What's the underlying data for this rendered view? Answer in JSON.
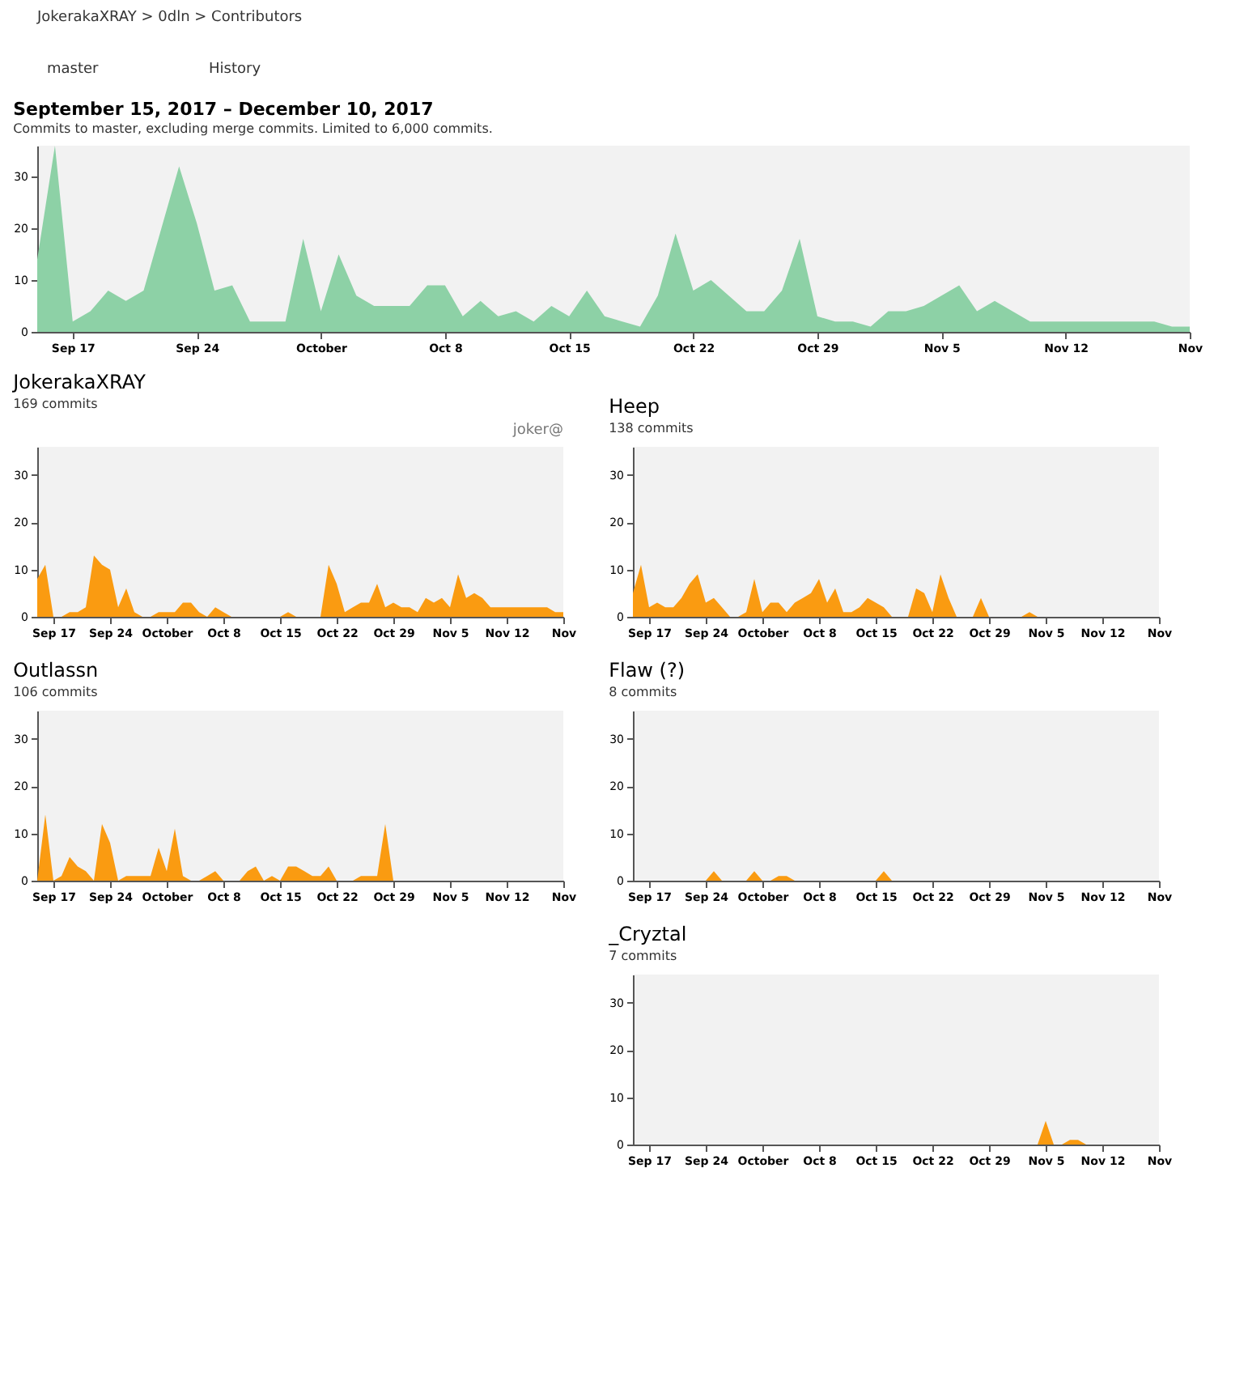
{
  "chart_data": [
    {
      "type": "area",
      "title": "September 15, 2017 – December 10, 2017",
      "subtitle": "Commits to master, excluding merge commits. Limited to 6,000 commits.",
      "annotations": [
        "JokerakaXRAY > 0dln > Contributors",
        "master",
        "History"
      ],
      "color": "#8dd1a6",
      "x": [
        "2017-09-15",
        "2017-09-16",
        "2017-09-17",
        "2017-09-18",
        "2017-09-19",
        "2017-09-20",
        "2017-09-21",
        "2017-09-22",
        "2017-09-23",
        "2017-09-24",
        "2017-09-25",
        "2017-09-26",
        "2017-09-27",
        "2017-09-28",
        "2017-09-29",
        "2017-09-30",
        "2017-10-01",
        "2017-10-02",
        "2017-10-03",
        "2017-10-04",
        "2017-10-05",
        "2017-10-06",
        "2017-10-07",
        "2017-10-08",
        "2017-10-09",
        "2017-10-10",
        "2017-10-11",
        "2017-10-12",
        "2017-10-13",
        "2017-10-14",
        "2017-10-15",
        "2017-10-16",
        "2017-10-17",
        "2017-10-18",
        "2017-10-19",
        "2017-10-20",
        "2017-10-21",
        "2017-10-22",
        "2017-10-23",
        "2017-10-24",
        "2017-10-25",
        "2017-10-26",
        "2017-10-27",
        "2017-10-28",
        "2017-10-29",
        "2017-10-30",
        "2017-10-31",
        "2017-11-01",
        "2017-11-02",
        "2017-11-03",
        "2017-11-04",
        "2017-11-05",
        "2017-11-06",
        "2017-11-07",
        "2017-11-08",
        "2017-11-09",
        "2017-11-10",
        "2017-11-11",
        "2017-11-12",
        "2017-11-13",
        "2017-11-14",
        "2017-11-15",
        "2017-11-16",
        "2017-11-17",
        "2017-11-18",
        "2017-11-19"
      ],
      "values": [
        14,
        36,
        2,
        4,
        8,
        6,
        8,
        20,
        32,
        21,
        8,
        9,
        2,
        2,
        2,
        18,
        4,
        15,
        7,
        5,
        5,
        5,
        9,
        9,
        3,
        6,
        3,
        4,
        2,
        5,
        3,
        8,
        3,
        2,
        1,
        7,
        19,
        8,
        10,
        7,
        4,
        4,
        8,
        18,
        3,
        2,
        2,
        1,
        4,
        4,
        5,
        7,
        9,
        4,
        6,
        4,
        2,
        2,
        2,
        2,
        2,
        2,
        2,
        2,
        1,
        1
      ],
      "xlim": [
        "2017-09-15",
        "2017-11-19"
      ],
      "xticks": [
        {
          "value": "2017-09-17",
          "label": "Sep 17"
        },
        {
          "value": "2017-09-24",
          "label": "Sep 24"
        },
        {
          "value": "2017-10-01",
          "label": "October"
        },
        {
          "value": "2017-10-08",
          "label": "Oct 8"
        },
        {
          "value": "2017-10-15",
          "label": "Oct 15"
        },
        {
          "value": "2017-10-22",
          "label": "Oct 22"
        },
        {
          "value": "2017-10-29",
          "label": "Oct 29"
        },
        {
          "value": "2017-11-05",
          "label": "Nov 5"
        },
        {
          "value": "2017-11-12",
          "label": "Nov 12"
        },
        {
          "value": "2017-11-19",
          "label": "Nov"
        }
      ],
      "ylim": [
        0,
        36
      ],
      "yticks": [
        0,
        10,
        20,
        30
      ],
      "grid": false
    },
    {
      "type": "area",
      "title": "JokerakaXRAY",
      "subtitle": "169 commits",
      "annotations": [
        "joker@"
      ],
      "color": "#fa9b11",
      "x": [
        "2017-09-15",
        "2017-09-16",
        "2017-09-17",
        "2017-09-18",
        "2017-09-19",
        "2017-09-20",
        "2017-09-21",
        "2017-09-22",
        "2017-09-23",
        "2017-09-24",
        "2017-09-25",
        "2017-09-26",
        "2017-09-27",
        "2017-09-28",
        "2017-09-29",
        "2017-09-30",
        "2017-10-01",
        "2017-10-02",
        "2017-10-03",
        "2017-10-04",
        "2017-10-05",
        "2017-10-06",
        "2017-10-07",
        "2017-10-08",
        "2017-10-09",
        "2017-10-10",
        "2017-10-11",
        "2017-10-12",
        "2017-10-13",
        "2017-10-14",
        "2017-10-15",
        "2017-10-16",
        "2017-10-17",
        "2017-10-18",
        "2017-10-19",
        "2017-10-20",
        "2017-10-21",
        "2017-10-22",
        "2017-10-23",
        "2017-10-24",
        "2017-10-25",
        "2017-10-26",
        "2017-10-27",
        "2017-10-28",
        "2017-10-29",
        "2017-10-30",
        "2017-10-31",
        "2017-11-01",
        "2017-11-02",
        "2017-11-03",
        "2017-11-04",
        "2017-11-05",
        "2017-11-06",
        "2017-11-07",
        "2017-11-08",
        "2017-11-09",
        "2017-11-10",
        "2017-11-11",
        "2017-11-12",
        "2017-11-13",
        "2017-11-14",
        "2017-11-15",
        "2017-11-16",
        "2017-11-17",
        "2017-11-18",
        "2017-11-19"
      ],
      "values": [
        8,
        11,
        0,
        0,
        1,
        1,
        2,
        13,
        11,
        10,
        2,
        6,
        1,
        0,
        0,
        1,
        1,
        1,
        3,
        3,
        1,
        0,
        2,
        1,
        0,
        0,
        0,
        0,
        0,
        0,
        0,
        1,
        0,
        0,
        0,
        0,
        11,
        7,
        1,
        2,
        3,
        3,
        7,
        2,
        3,
        2,
        2,
        1,
        4,
        3,
        4,
        2,
        9,
        4,
        5,
        4,
        2,
        2,
        2,
        2,
        2,
        2,
        2,
        2,
        1,
        1
      ],
      "xlim": [
        "2017-09-15",
        "2017-11-19"
      ],
      "xticks": [
        {
          "value": "2017-09-17",
          "label": "Sep 17"
        },
        {
          "value": "2017-09-24",
          "label": "Sep 24"
        },
        {
          "value": "2017-10-01",
          "label": "October"
        },
        {
          "value": "2017-10-08",
          "label": "Oct 8"
        },
        {
          "value": "2017-10-15",
          "label": "Oct 15"
        },
        {
          "value": "2017-10-22",
          "label": "Oct 22"
        },
        {
          "value": "2017-10-29",
          "label": "Oct 29"
        },
        {
          "value": "2017-11-05",
          "label": "Nov 5"
        },
        {
          "value": "2017-11-12",
          "label": "Nov 12"
        },
        {
          "value": "2017-11-19",
          "label": "Nov"
        }
      ],
      "ylim": [
        0,
        36
      ],
      "yticks": [
        0,
        10,
        20,
        30
      ],
      "grid": false
    },
    {
      "type": "area",
      "title": "Heep",
      "subtitle": "138 commits",
      "color": "#fa9b11",
      "x": [
        "2017-09-15",
        "2017-09-16",
        "2017-09-17",
        "2017-09-18",
        "2017-09-19",
        "2017-09-20",
        "2017-09-21",
        "2017-09-22",
        "2017-09-23",
        "2017-09-24",
        "2017-09-25",
        "2017-09-26",
        "2017-09-27",
        "2017-09-28",
        "2017-09-29",
        "2017-09-30",
        "2017-10-01",
        "2017-10-02",
        "2017-10-03",
        "2017-10-04",
        "2017-10-05",
        "2017-10-06",
        "2017-10-07",
        "2017-10-08",
        "2017-10-09",
        "2017-10-10",
        "2017-10-11",
        "2017-10-12",
        "2017-10-13",
        "2017-10-14",
        "2017-10-15",
        "2017-10-16",
        "2017-10-17",
        "2017-10-18",
        "2017-10-19",
        "2017-10-20",
        "2017-10-21",
        "2017-10-22",
        "2017-10-23",
        "2017-10-24",
        "2017-10-25",
        "2017-10-26",
        "2017-10-27",
        "2017-10-28",
        "2017-10-29",
        "2017-10-30",
        "2017-10-31",
        "2017-11-01",
        "2017-11-02",
        "2017-11-03",
        "2017-11-04",
        "2017-11-05",
        "2017-11-06",
        "2017-11-07",
        "2017-11-08",
        "2017-11-09",
        "2017-11-10",
        "2017-11-11",
        "2017-11-12",
        "2017-11-13",
        "2017-11-14",
        "2017-11-15",
        "2017-11-16",
        "2017-11-17",
        "2017-11-18",
        "2017-11-19"
      ],
      "values": [
        5,
        11,
        2,
        3,
        2,
        2,
        4,
        7,
        9,
        3,
        4,
        2,
        0,
        0,
        1,
        8,
        1,
        3,
        3,
        1,
        3,
        4,
        5,
        8,
        3,
        6,
        1,
        1,
        2,
        4,
        3,
        2,
        0,
        0,
        0,
        6,
        5,
        1,
        9,
        4,
        0,
        0,
        0,
        4,
        0,
        0,
        0,
        0,
        0,
        1,
        0,
        0,
        0,
        0,
        0,
        0,
        0,
        0,
        0,
        0,
        0,
        0,
        0,
        0,
        0,
        0
      ],
      "xlim": [
        "2017-09-15",
        "2017-11-19"
      ],
      "xticks": [
        {
          "value": "2017-09-17",
          "label": "Sep 17"
        },
        {
          "value": "2017-09-24",
          "label": "Sep 24"
        },
        {
          "value": "2017-10-01",
          "label": "October"
        },
        {
          "value": "2017-10-08",
          "label": "Oct 8"
        },
        {
          "value": "2017-10-15",
          "label": "Oct 15"
        },
        {
          "value": "2017-10-22",
          "label": "Oct 22"
        },
        {
          "value": "2017-10-29",
          "label": "Oct 29"
        },
        {
          "value": "2017-11-05",
          "label": "Nov 5"
        },
        {
          "value": "2017-11-12",
          "label": "Nov 12"
        },
        {
          "value": "2017-11-19",
          "label": "Nov"
        }
      ],
      "ylim": [
        0,
        36
      ],
      "yticks": [
        0,
        10,
        20,
        30
      ],
      "grid": false
    },
    {
      "type": "area",
      "title": "Outlassn",
      "subtitle": "106 commits",
      "color": "#fa9b11",
      "x": [
        "2017-09-15",
        "2017-09-16",
        "2017-09-17",
        "2017-09-18",
        "2017-09-19",
        "2017-09-20",
        "2017-09-21",
        "2017-09-22",
        "2017-09-23",
        "2017-09-24",
        "2017-09-25",
        "2017-09-26",
        "2017-09-27",
        "2017-09-28",
        "2017-09-29",
        "2017-09-30",
        "2017-10-01",
        "2017-10-02",
        "2017-10-03",
        "2017-10-04",
        "2017-10-05",
        "2017-10-06",
        "2017-10-07",
        "2017-10-08",
        "2017-10-09",
        "2017-10-10",
        "2017-10-11",
        "2017-10-12",
        "2017-10-13",
        "2017-10-14",
        "2017-10-15",
        "2017-10-16",
        "2017-10-17",
        "2017-10-18",
        "2017-10-19",
        "2017-10-20",
        "2017-10-21",
        "2017-10-22",
        "2017-10-23",
        "2017-10-24",
        "2017-10-25",
        "2017-10-26",
        "2017-10-27",
        "2017-10-28",
        "2017-10-29",
        "2017-10-30",
        "2017-10-31",
        "2017-11-01",
        "2017-11-02",
        "2017-11-03",
        "2017-11-04",
        "2017-11-05",
        "2017-11-06",
        "2017-11-07",
        "2017-11-08",
        "2017-11-09",
        "2017-11-10",
        "2017-11-11",
        "2017-11-12",
        "2017-11-13",
        "2017-11-14",
        "2017-11-15",
        "2017-11-16",
        "2017-11-17",
        "2017-11-18",
        "2017-11-19"
      ],
      "values": [
        0,
        14,
        0,
        1,
        5,
        3,
        2,
        0,
        12,
        8,
        0,
        1,
        1,
        1,
        1,
        7,
        2,
        11,
        1,
        0,
        0,
        1,
        2,
        0,
        0,
        0,
        2,
        3,
        0,
        1,
        0,
        3,
        3,
        2,
        1,
        1,
        3,
        0,
        0,
        0,
        1,
        1,
        1,
        12,
        0,
        0,
        0,
        0,
        0,
        0,
        0,
        0,
        0,
        0,
        0,
        0,
        0,
        0,
        0,
        0,
        0,
        0,
        0,
        0,
        0,
        0
      ],
      "xlim": [
        "2017-09-15",
        "2017-11-19"
      ],
      "xticks": [
        {
          "value": "2017-09-17",
          "label": "Sep 17"
        },
        {
          "value": "2017-09-24",
          "label": "Sep 24"
        },
        {
          "value": "2017-10-01",
          "label": "October"
        },
        {
          "value": "2017-10-08",
          "label": "Oct 8"
        },
        {
          "value": "2017-10-15",
          "label": "Oct 15"
        },
        {
          "value": "2017-10-22",
          "label": "Oct 22"
        },
        {
          "value": "2017-10-29",
          "label": "Oct 29"
        },
        {
          "value": "2017-11-05",
          "label": "Nov 5"
        },
        {
          "value": "2017-11-12",
          "label": "Nov 12"
        },
        {
          "value": "2017-11-19",
          "label": "Nov"
        }
      ],
      "ylim": [
        0,
        36
      ],
      "yticks": [
        0,
        10,
        20,
        30
      ],
      "grid": false
    },
    {
      "type": "area",
      "title": "Flaw (?)",
      "subtitle": "8 commits",
      "color": "#fa9b11",
      "x": [
        "2017-09-15",
        "2017-09-16",
        "2017-09-17",
        "2017-09-18",
        "2017-09-19",
        "2017-09-20",
        "2017-09-21",
        "2017-09-22",
        "2017-09-23",
        "2017-09-24",
        "2017-09-25",
        "2017-09-26",
        "2017-09-27",
        "2017-09-28",
        "2017-09-29",
        "2017-09-30",
        "2017-10-01",
        "2017-10-02",
        "2017-10-03",
        "2017-10-04",
        "2017-10-05",
        "2017-10-06",
        "2017-10-07",
        "2017-10-08",
        "2017-10-09",
        "2017-10-10",
        "2017-10-11",
        "2017-10-12",
        "2017-10-13",
        "2017-10-14",
        "2017-10-15",
        "2017-10-16",
        "2017-10-17",
        "2017-10-18",
        "2017-10-19",
        "2017-10-20",
        "2017-10-21",
        "2017-10-22",
        "2017-10-23",
        "2017-10-24",
        "2017-10-25",
        "2017-10-26",
        "2017-10-27",
        "2017-10-28",
        "2017-10-29",
        "2017-10-30",
        "2017-10-31",
        "2017-11-01",
        "2017-11-02",
        "2017-11-03",
        "2017-11-04",
        "2017-11-05",
        "2017-11-06",
        "2017-11-07",
        "2017-11-08",
        "2017-11-09",
        "2017-11-10",
        "2017-11-11",
        "2017-11-12",
        "2017-11-13",
        "2017-11-14",
        "2017-11-15",
        "2017-11-16",
        "2017-11-17",
        "2017-11-18",
        "2017-11-19"
      ],
      "values": [
        0,
        0,
        0,
        0,
        0,
        0,
        0,
        0,
        0,
        0,
        2,
        0,
        0,
        0,
        0,
        2,
        0,
        0,
        1,
        1,
        0,
        0,
        0,
        0,
        0,
        0,
        0,
        0,
        0,
        0,
        0,
        2,
        0,
        0,
        0,
        0,
        0,
        0,
        0,
        0,
        0,
        0,
        0,
        0,
        0,
        0,
        0,
        0,
        0,
        0,
        0,
        0,
        0,
        0,
        0,
        0,
        0,
        0,
        0,
        0,
        0,
        0,
        0,
        0,
        0,
        0
      ],
      "xlim": [
        "2017-09-15",
        "2017-11-19"
      ],
      "xticks": [
        {
          "value": "2017-09-17",
          "label": "Sep 17"
        },
        {
          "value": "2017-09-24",
          "label": "Sep 24"
        },
        {
          "value": "2017-10-01",
          "label": "October"
        },
        {
          "value": "2017-10-08",
          "label": "Oct 8"
        },
        {
          "value": "2017-10-15",
          "label": "Oct 15"
        },
        {
          "value": "2017-10-22",
          "label": "Oct 22"
        },
        {
          "value": "2017-10-29",
          "label": "Oct 29"
        },
        {
          "value": "2017-11-05",
          "label": "Nov 5"
        },
        {
          "value": "2017-11-12",
          "label": "Nov 12"
        },
        {
          "value": "2017-11-19",
          "label": "Nov"
        }
      ],
      "ylim": [
        0,
        36
      ],
      "yticks": [
        0,
        10,
        20,
        30
      ],
      "grid": false
    },
    {
      "type": "area",
      "title": "_Cryztal",
      "subtitle": "7 commits",
      "color": "#fa9b11",
      "x": [
        "2017-09-15",
        "2017-09-16",
        "2017-09-17",
        "2017-09-18",
        "2017-09-19",
        "2017-09-20",
        "2017-09-21",
        "2017-09-22",
        "2017-09-23",
        "2017-09-24",
        "2017-09-25",
        "2017-09-26",
        "2017-09-27",
        "2017-09-28",
        "2017-09-29",
        "2017-09-30",
        "2017-10-01",
        "2017-10-02",
        "2017-10-03",
        "2017-10-04",
        "2017-10-05",
        "2017-10-06",
        "2017-10-07",
        "2017-10-08",
        "2017-10-09",
        "2017-10-10",
        "2017-10-11",
        "2017-10-12",
        "2017-10-13",
        "2017-10-14",
        "2017-10-15",
        "2017-10-16",
        "2017-10-17",
        "2017-10-18",
        "2017-10-19",
        "2017-10-20",
        "2017-10-21",
        "2017-10-22",
        "2017-10-23",
        "2017-10-24",
        "2017-10-25",
        "2017-10-26",
        "2017-10-27",
        "2017-10-28",
        "2017-10-29",
        "2017-10-30",
        "2017-10-31",
        "2017-11-01",
        "2017-11-02",
        "2017-11-03",
        "2017-11-04",
        "2017-11-05",
        "2017-11-06",
        "2017-11-07",
        "2017-11-08",
        "2017-11-09",
        "2017-11-10",
        "2017-11-11",
        "2017-11-12",
        "2017-11-13",
        "2017-11-14",
        "2017-11-15",
        "2017-11-16",
        "2017-11-17",
        "2017-11-18",
        "2017-11-19"
      ],
      "values": [
        0,
        0,
        0,
        0,
        0,
        0,
        0,
        0,
        0,
        0,
        0,
        0,
        0,
        0,
        0,
        0,
        0,
        0,
        0,
        0,
        0,
        0,
        0,
        0,
        0,
        0,
        0,
        0,
        0,
        0,
        0,
        0,
        0,
        0,
        0,
        0,
        0,
        0,
        0,
        0,
        0,
        0,
        0,
        0,
        0,
        0,
        0,
        0,
        0,
        0,
        0,
        5,
        0,
        0,
        1,
        1,
        0,
        0,
        0,
        0,
        0,
        0,
        0,
        0,
        0,
        0
      ],
      "xlim": [
        "2017-09-15",
        "2017-11-19"
      ],
      "xticks": [
        {
          "value": "2017-09-17",
          "label": "Sep 17"
        },
        {
          "value": "2017-09-24",
          "label": "Sep 24"
        },
        {
          "value": "2017-10-01",
          "label": "October"
        },
        {
          "value": "2017-10-08",
          "label": "Oct 8"
        },
        {
          "value": "2017-10-15",
          "label": "Oct 15"
        },
        {
          "value": "2017-10-22",
          "label": "Oct 22"
        },
        {
          "value": "2017-10-29",
          "label": "Oct 29"
        },
        {
          "value": "2017-11-05",
          "label": "Nov 5"
        },
        {
          "value": "2017-11-12",
          "label": "Nov 12"
        },
        {
          "value": "2017-11-19",
          "label": "Nov"
        }
      ],
      "ylim": [
        0,
        36
      ],
      "yticks": [
        0,
        10,
        20,
        30
      ],
      "grid": false
    }
  ]
}
